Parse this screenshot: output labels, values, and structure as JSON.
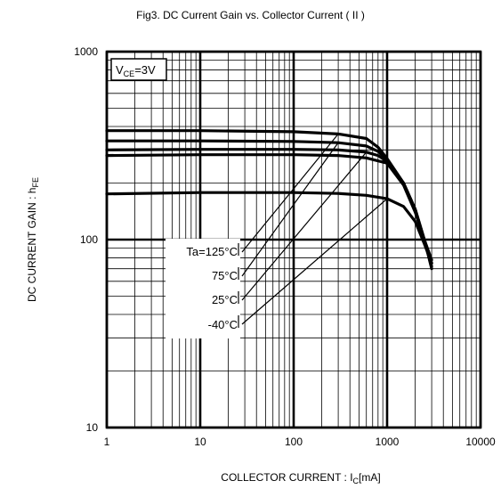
{
  "chart_data": {
    "type": "line",
    "title": "Fig3. DC Current Gain vs. Collector Current ( II )",
    "xlabel_main": "COLLECTOR CURRENT : I",
    "xlabel_sub": "C",
    "xlabel_unit": "[mA]",
    "ylabel_main": "DC CURRENT GAIN : h",
    "ylabel_sub": "FE",
    "x_scale": "log",
    "y_scale": "log",
    "xlim": [
      1,
      10000
    ],
    "ylim": [
      10,
      1000
    ],
    "x_ticks": [
      "1",
      "10",
      "100",
      "1000",
      "10000"
    ],
    "y_ticks": [
      "10",
      "100",
      "1000"
    ],
    "condition": {
      "main": "V",
      "sub": "CE",
      "rest": "=3V"
    },
    "grid": true,
    "series": [
      {
        "name": "Ta=125°C",
        "x": [
          1,
          10,
          100,
          300,
          600,
          800,
          1000,
          1500,
          2000,
          2500,
          3000
        ],
        "y": [
          380,
          380,
          375,
          365,
          345,
          310,
          270,
          200,
          145,
          100,
          70
        ]
      },
      {
        "name": "75°C",
        "x": [
          1,
          10,
          100,
          300,
          600,
          800,
          1000,
          1500,
          2000,
          2500,
          3000
        ],
        "y": [
          335,
          335,
          333,
          328,
          315,
          295,
          265,
          200,
          145,
          100,
          72
        ]
      },
      {
        "name": "25°C",
        "x": [
          1,
          10,
          100,
          300,
          600,
          800,
          1000,
          1500,
          2000,
          2500,
          3000
        ],
        "y": [
          300,
          302,
          302,
          300,
          292,
          280,
          260,
          200,
          145,
          100,
          75
        ]
      },
      {
        "name": "-40°C",
        "x": [
          1,
          10,
          100,
          300,
          600,
          1000,
          1500,
          2000,
          2500,
          3000
        ],
        "y": [
          280,
          283,
          283,
          280,
          272,
          255,
          195,
          140,
          100,
          78
        ]
      },
      {
        "name": "",
        "x": [
          1,
          10,
          100,
          300,
          600,
          1000,
          1500,
          2000,
          2500,
          3000
        ],
        "y": [
          175,
          178,
          178,
          176,
          172,
          165,
          150,
          125,
          95,
          75
        ]
      }
    ],
    "annotation_labels": [
      "Ta=125°C",
      "75°C",
      "25°C",
      "-40°C"
    ],
    "leader_targets": [
      {
        "x": 300,
        "y": 365
      },
      {
        "x": 300,
        "y": 328
      },
      {
        "x": 600,
        "y": 292
      },
      {
        "x": 1000,
        "y": 165
      }
    ]
  }
}
